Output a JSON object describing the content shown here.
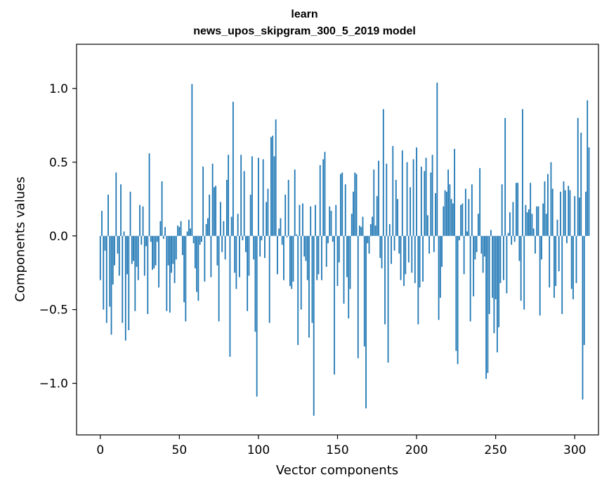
{
  "chart_data": {
    "type": "bar",
    "title": "learn",
    "subtitle": "news_upos_skipgram_300_5_2019 model",
    "xlabel": "Vector components",
    "ylabel": "Components values",
    "xlim": [
      -15,
      315
    ],
    "ylim": [
      -1.35,
      1.3
    ],
    "x_ticks": [
      0,
      50,
      100,
      150,
      200,
      250,
      300
    ],
    "x_tick_labels": [
      "0",
      "50",
      "100",
      "150",
      "200",
      "250",
      "300"
    ],
    "y_ticks": [
      -1.0,
      -0.5,
      0.0,
      0.5,
      1.0
    ],
    "y_tick_labels": [
      "−1.0",
      "−0.5",
      "0.0",
      "0.5",
      "1.0"
    ],
    "grid": false,
    "bar_color": "#1f77b4",
    "values": [
      -0.3,
      0.17,
      -0.5,
      -0.1,
      -0.59,
      0.28,
      -0.48,
      -0.67,
      -0.33,
      -0.2,
      0.43,
      -0.12,
      -0.27,
      0.35,
      -0.59,
      0.03,
      -0.71,
      -0.26,
      -0.64,
      0.3,
      -0.19,
      -0.17,
      -0.51,
      -0.21,
      -0.3,
      0.21,
      -0.06,
      0.2,
      -0.27,
      -0.07,
      -0.53,
      0.56,
      -0.04,
      -0.23,
      -0.22,
      -0.2,
      -0.04,
      -0.35,
      0.1,
      0.37,
      -0.02,
      0.06,
      -0.51,
      -0.2,
      -0.52,
      -0.25,
      -0.19,
      -0.32,
      -0.16,
      0.07,
      0.06,
      0.1,
      -0.13,
      -0.45,
      -0.58,
      0.03,
      0.11,
      0.05,
      1.03,
      -0.05,
      -0.22,
      -0.38,
      -0.44,
      -0.06,
      -0.04,
      0.47,
      -0.31,
      0.08,
      0.12,
      0.28,
      -0.28,
      0.49,
      0.33,
      0.34,
      -0.2,
      -0.58,
      0.23,
      -0.11,
      0.1,
      -0.16,
      0.38,
      0.55,
      -0.82,
      0.13,
      0.91,
      -0.25,
      -0.36,
      0.15,
      -0.28,
      0.55,
      -0.03,
      0.44,
      -0.11,
      -0.51,
      -0.27,
      0.28,
      0.54,
      -0.16,
      -0.65,
      -1.09,
      0.53,
      -0.14,
      -0.03,
      0.52,
      -0.15,
      0.23,
      0.32,
      -0.59,
      0.67,
      0.68,
      0.54,
      0.79,
      -0.26,
      0.05,
      0.12,
      -0.06,
      -0.3,
      0.28,
      -0.01,
      0.38,
      -0.34,
      -0.36,
      -0.31,
      0.45,
      0.01,
      -0.74,
      0.21,
      -0.5,
      0.22,
      -0.14,
      -0.17,
      -0.3,
      -0.69,
      0.2,
      -0.59,
      -1.22,
      0.21,
      -0.3,
      -0.26,
      0.48,
      -0.3,
      0.52,
      0.57,
      -0.21,
      -0.05,
      0.2,
      0.17,
      -0.04,
      -0.94,
      0.21,
      -0.34,
      -0.18,
      0.42,
      0.43,
      -0.46,
      0.35,
      -0.28,
      -0.56,
      -0.36,
      0.15,
      0.3,
      0.43,
      0.42,
      -0.83,
      0.07,
      0.06,
      0.13,
      -0.75,
      -1.17,
      -0.05,
      -0.12,
      0.08,
      0.13,
      0.45,
      0.07,
      0.27,
      0.51,
      -0.15,
      -0.22,
      0.86,
      -0.6,
      0.49,
      -0.86,
      0.08,
      -0.19,
      0.61,
      -0.1,
      0.38,
      0.25,
      -0.12,
      -0.3,
      0.58,
      -0.34,
      -0.26,
      0.5,
      -0.18,
      0.33,
      -0.25,
      0.52,
      -0.32,
      0.6,
      -0.6,
      -0.35,
      0.47,
      -0.31,
      0.44,
      0.53,
      0.14,
      -0.12,
      0.43,
      0.55,
      -0.11,
      0.29,
      1.04,
      -0.57,
      -0.42,
      -0.21,
      0.2,
      0.31,
      0.3,
      0.45,
      0.35,
      0.25,
      0.22,
      0.59,
      -0.78,
      -0.87,
      -0.03,
      0.21,
      0.22,
      -0.26,
      0.32,
      0.03,
      0.25,
      -0.58,
      0.35,
      -0.41,
      -0.16,
      -0.11,
      0.15,
      0.46,
      -0.12,
      -0.25,
      -0.14,
      -0.97,
      -0.93,
      -0.53,
      0.04,
      -0.42,
      -0.66,
      -0.43,
      -0.79,
      -0.62,
      -0.32,
      0.35,
      -0.3,
      0.8,
      -0.39,
      0.02,
      0.16,
      -0.06,
      0.23,
      -0.04,
      0.36,
      0.36,
      -0.17,
      -0.44,
      0.86,
      -0.5,
      0.21,
      0.16,
      0.18,
      0.36,
      0.15,
      0.05,
      -0.12,
      0.2,
      0.2,
      -0.54,
      -0.16,
      0.22,
      0.37,
      0.15,
      0.42,
      -0.35,
      0.5,
      0.32,
      -0.42,
      -0.34,
      0.11,
      -0.24,
      0.3,
      -0.53,
      0.37,
      0.31,
      -0.05,
      0.34,
      0.31,
      -0.36,
      -0.43,
      0.27,
      -0.32,
      0.8,
      0.26,
      0.7,
      -1.11,
      -0.74,
      0.3,
      0.92,
      0.6
    ]
  }
}
